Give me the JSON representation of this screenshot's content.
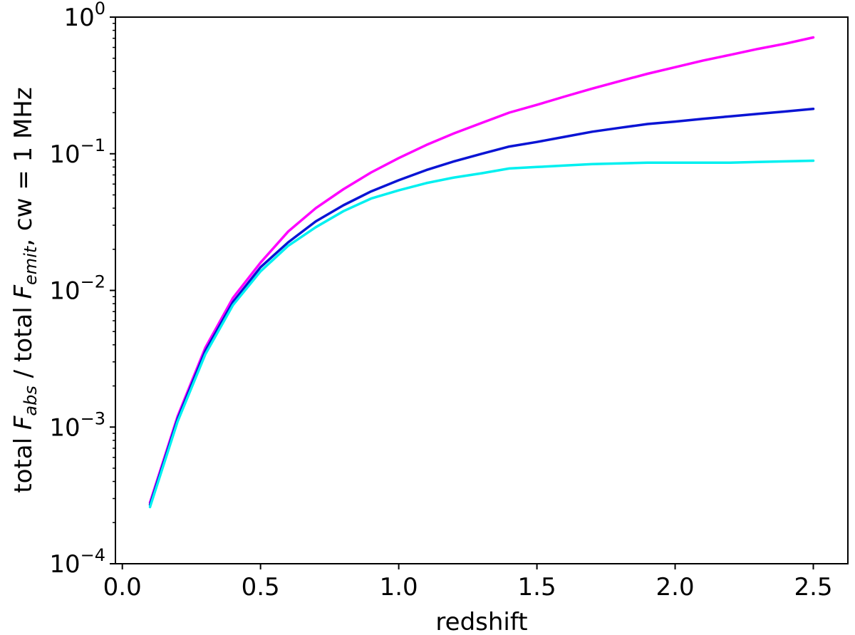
{
  "chart_data": {
    "type": "line",
    "xlabel": "redshift",
    "ylabel_parts": {
      "prefix": "total ",
      "sym1": "F",
      "sub1": "abs",
      "mid": " / total ",
      "sym2": "F",
      "sub2": "emit",
      "suffix": ", cw = 1 MHz"
    },
    "xlim": [
      -0.025,
      2.625
    ],
    "ylim": [
      0.0001,
      1
    ],
    "yscale": "log",
    "grid": false,
    "xticks": [
      {
        "value": 0.0,
        "label": "0.0"
      },
      {
        "value": 0.5,
        "label": "0.5"
      },
      {
        "value": 1.0,
        "label": "1.0"
      },
      {
        "value": 1.5,
        "label": "1.5"
      },
      {
        "value": 2.0,
        "label": "2.0"
      },
      {
        "value": 2.5,
        "label": "2.5"
      }
    ],
    "yticks": [
      {
        "value": 1,
        "base": "10",
        "exp": "0"
      },
      {
        "value": 0.1,
        "base": "10",
        "exp": "−1"
      },
      {
        "value": 0.01,
        "base": "10",
        "exp": "−2"
      },
      {
        "value": 0.001,
        "base": "10",
        "exp": "−3"
      },
      {
        "value": 0.0001,
        "base": "10",
        "exp": "−4"
      }
    ],
    "x": [
      0.1,
      0.2,
      0.3,
      0.4,
      0.5,
      0.6,
      0.7,
      0.8,
      0.9,
      1.0,
      1.1,
      1.2,
      1.3,
      1.4,
      1.5,
      1.6,
      1.7,
      1.8,
      1.9,
      2.0,
      2.1,
      2.2,
      2.3,
      2.4,
      2.5
    ],
    "series": [
      {
        "color": "#ff00ff",
        "values": [
          0.00028,
          0.0012,
          0.0038,
          0.0088,
          0.016,
          0.027,
          0.04,
          0.055,
          0.073,
          0.093,
          0.116,
          0.141,
          0.168,
          0.2,
          0.228,
          0.262,
          0.3,
          0.34,
          0.385,
          0.43,
          0.48,
          0.53,
          0.585,
          0.64,
          0.71
        ]
      },
      {
        "color": "#0a14d4",
        "values": [
          0.00027,
          0.00115,
          0.0036,
          0.0082,
          0.0148,
          0.0225,
          0.032,
          0.042,
          0.053,
          0.064,
          0.076,
          0.088,
          0.1,
          0.113,
          0.122,
          0.133,
          0.145,
          0.155,
          0.165,
          0.172,
          0.18,
          0.188,
          0.196,
          0.204,
          0.213
        ]
      },
      {
        "color": "#00f0f0",
        "values": [
          0.00026,
          0.0011,
          0.0034,
          0.0078,
          0.0138,
          0.0212,
          0.029,
          0.038,
          0.047,
          0.054,
          0.061,
          0.067,
          0.072,
          0.078,
          0.08,
          0.082,
          0.084,
          0.085,
          0.086,
          0.086,
          0.086,
          0.086,
          0.087,
          0.088,
          0.089
        ]
      }
    ]
  }
}
